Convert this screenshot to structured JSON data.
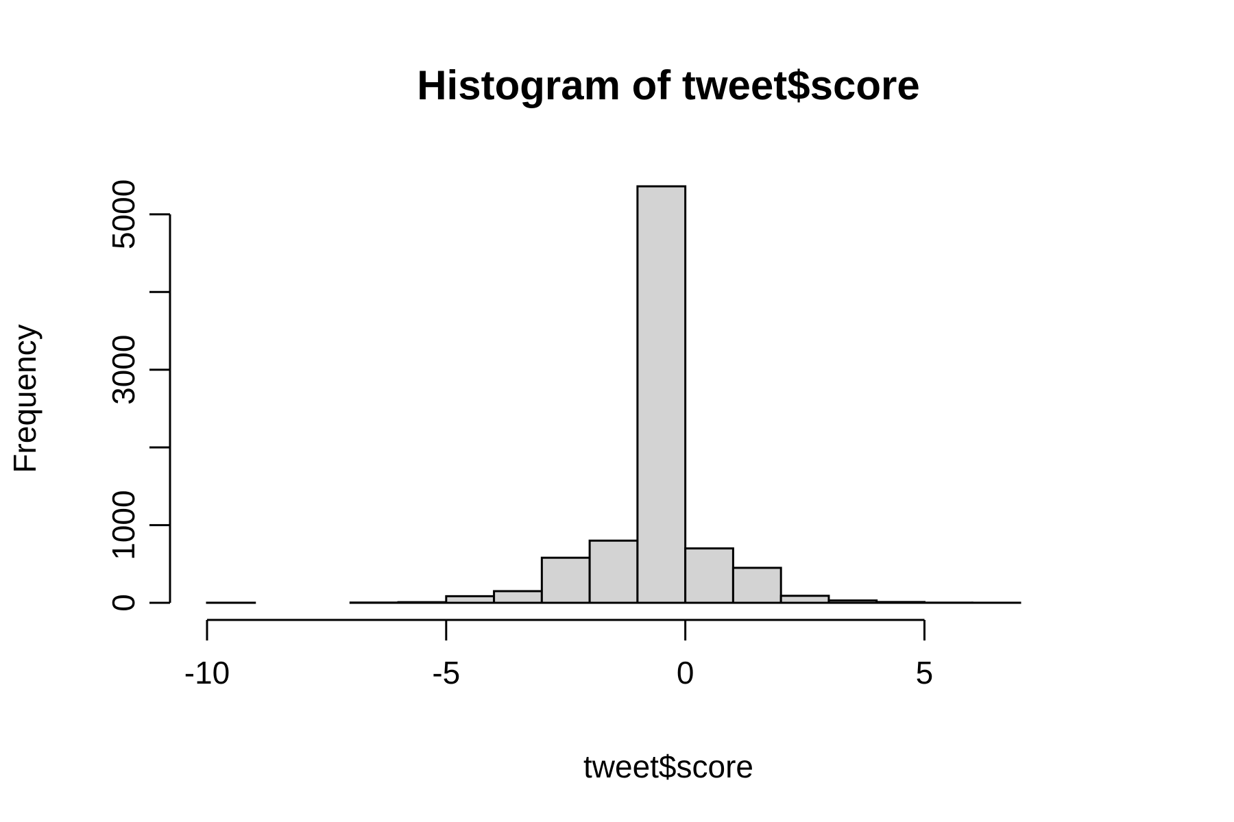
{
  "chart_data": {
    "type": "bar",
    "title": "Histogram of tweet$score",
    "xlabel": "tweet$score",
    "ylabel": "Frequency",
    "bar_color": "#d3d3d3",
    "bin_edges": [
      -10,
      -9,
      -8,
      -7,
      -6,
      -5,
      -4,
      -3,
      -2,
      -1,
      0,
      1,
      2,
      3,
      4,
      5,
      6,
      7
    ],
    "values": [
      1,
      0,
      0,
      3,
      8,
      85,
      150,
      580,
      800,
      5360,
      700,
      450,
      90,
      30,
      10,
      2,
      1
    ],
    "xlim": [
      -10,
      7
    ],
    "ylim": [
      0,
      5360
    ],
    "x_ticks": [
      -10,
      -5,
      0,
      5
    ],
    "x_tick_labels": [
      "-10",
      "-5",
      "0",
      "5"
    ],
    "y_ticks": [
      0,
      1000,
      2000,
      3000,
      4000,
      5000
    ],
    "y_tick_labels": [
      "0",
      "1000",
      "",
      "3000",
      "",
      "5000"
    ]
  }
}
